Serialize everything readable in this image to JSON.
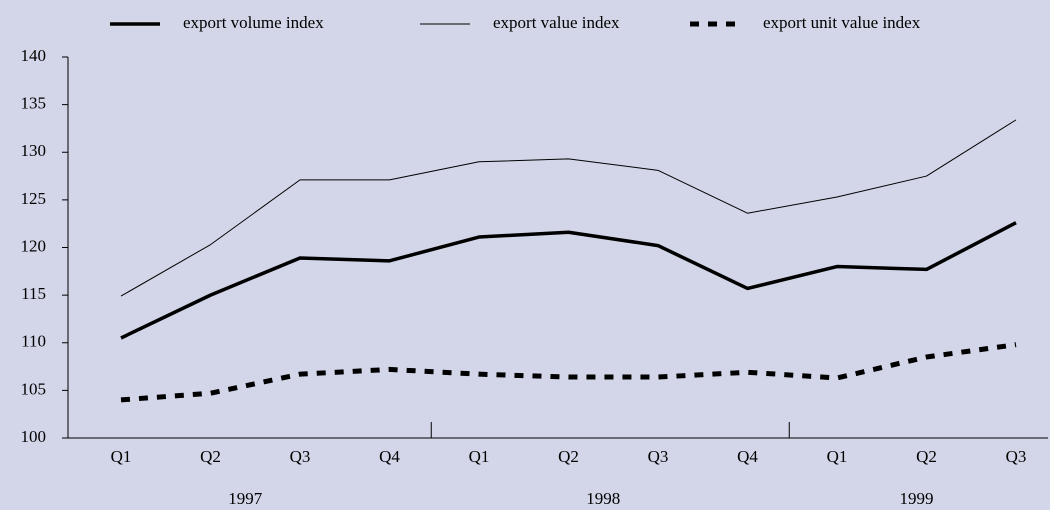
{
  "chart_data": {
    "type": "line",
    "categories": [
      "Q1",
      "Q2",
      "Q3",
      "Q4",
      "Q1",
      "Q2",
      "Q3",
      "Q4",
      "Q1",
      "Q2",
      "Q3"
    ],
    "groups": [
      {
        "label": "1997",
        "start": 0,
        "end": 3
      },
      {
        "label": "1998",
        "start": 4,
        "end": 7
      },
      {
        "label": "1999",
        "start": 8,
        "end": 10
      }
    ],
    "series": [
      {
        "name": "export volume index",
        "color": "#000000",
        "line_width": 3.5,
        "dash": "none",
        "values": [
          110.5,
          115,
          118.9,
          118.6,
          121.1,
          121.6,
          120.2,
          115.7,
          118,
          117.7,
          122.6
        ]
      },
      {
        "name": "export value index",
        "color": "#000000",
        "line_width": 1,
        "dash": "none",
        "values": [
          114.9,
          120.3,
          127.1,
          127.1,
          129,
          129.3,
          128.1,
          123.6,
          125.3,
          127.5,
          133.4
        ]
      },
      {
        "name": "export unit value index",
        "color": "#000000",
        "line_width": 5,
        "dash": "9 9",
        "values": [
          104,
          104.7,
          106.7,
          107.2,
          106.7,
          106.4,
          106.4,
          106.9,
          106.3,
          108.5,
          109.8
        ]
      }
    ],
    "ylim": [
      100,
      140
    ],
    "yticks": [
      100,
      105,
      110,
      115,
      120,
      125,
      130,
      135,
      140
    ],
    "grid": false,
    "legend": "top"
  }
}
